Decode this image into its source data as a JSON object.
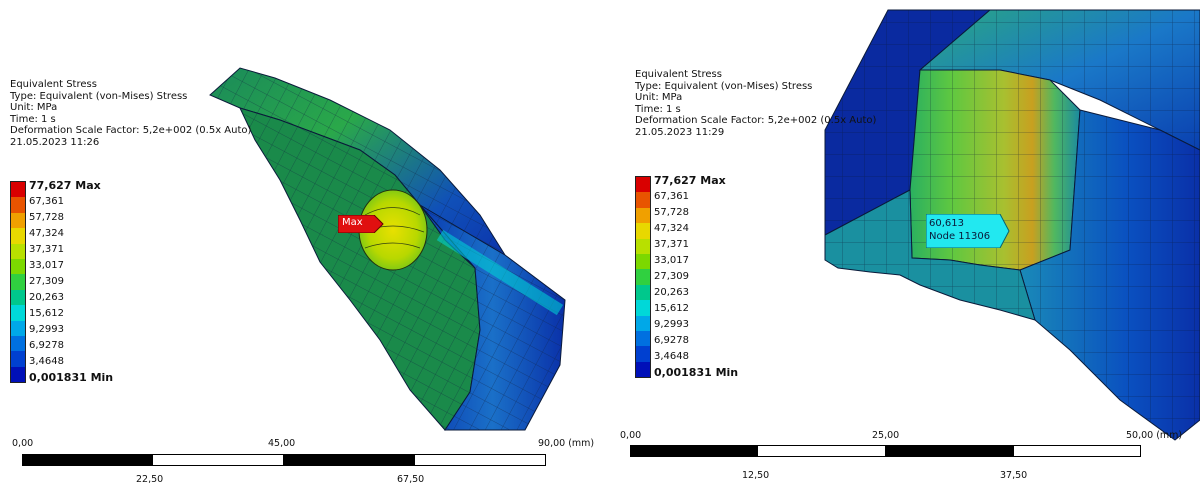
{
  "left": {
    "info": {
      "title": "Equivalent Stress",
      "type": "Type: Equivalent (von-Mises) Stress",
      "unit": "Unit: MPa",
      "time": "Time: 1 s",
      "deformation": "Deformation Scale Factor: 5,2e+002 (0.5x Auto)",
      "timestamp": "21.05.2023 11:26"
    },
    "legend": {
      "max_label": "77,627 Max",
      "values": [
        "67,361",
        "57,728",
        "47,324",
        "37,371",
        "33,017",
        "27,309",
        "20,263",
        "15,612",
        "9,2993",
        "6,9278",
        "3,4648"
      ],
      "min_label": "0,001831 Min"
    },
    "probe_label": "Max",
    "scale": {
      "top_ticks": [
        "0,00",
        "45,00",
        "90,00 (mm)"
      ],
      "bottom_ticks": [
        "22,50",
        "67,50"
      ]
    }
  },
  "right": {
    "info": {
      "title": "Equivalent Stress",
      "type": "Type: Equivalent (von-Mises) Stress",
      "unit": "Unit: MPa",
      "time": "Time: 1 s",
      "deformation": "Deformation Scale Factor: 5,2e+002 (0.5x Auto)",
      "timestamp": "21.05.2023 11:29"
    },
    "legend": {
      "max_label": "77,627 Max",
      "values": [
        "67,361",
        "57,728",
        "47,324",
        "37,371",
        "33,017",
        "27,309",
        "20,263",
        "15,612",
        "9,2993",
        "6,9278",
        "3,4648"
      ],
      "min_label": "0,001831 Min"
    },
    "probe": {
      "value": "60,613",
      "node": "Node 11306"
    },
    "scale": {
      "top_ticks": [
        "0,00",
        "25,00",
        "50,00 (mm)"
      ],
      "bottom_ticks": [
        "12,50",
        "37,50"
      ]
    }
  },
  "legend_colors": [
    "#d90000",
    "#e85400",
    "#f0a000",
    "#e8d800",
    "#b8e000",
    "#7cd800",
    "#30d040",
    "#00c88c",
    "#00d8d8",
    "#00a8e8",
    "#0070e0",
    "#0040d0",
    "#0010b8"
  ]
}
